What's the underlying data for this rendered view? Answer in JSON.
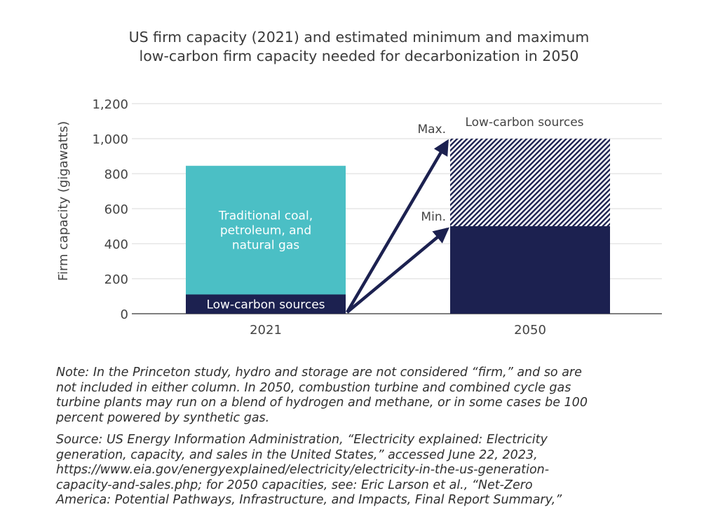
{
  "chart_data": {
    "type": "bar",
    "title_lines": [
      "US firm capacity (2021) and estimated minimum and maximum",
      "low-carbon firm capacity needed for decarbonization in 2050"
    ],
    "ylabel": "Firm capacity (gigawatts)",
    "ylim": [
      0,
      1200
    ],
    "yticks": [
      0,
      200,
      400,
      600,
      800,
      1000,
      1200
    ],
    "ytick_labels": [
      "0",
      "200",
      "400",
      "600",
      "800",
      "1,000",
      "1,200"
    ],
    "grid": true,
    "categories": [
      "2021",
      "2050"
    ],
    "bars": [
      {
        "category": "2021",
        "segments": [
          {
            "name": "Low-carbon sources",
            "value": 110,
            "color": "#1c2150"
          },
          {
            "name": "Traditional coal, petroleum, and natural gas",
            "value": 735,
            "color": "#4bbfc5",
            "label_lines": [
              "Traditional coal,",
              "petroleum, and",
              "natural gas"
            ]
          }
        ],
        "total": 845
      },
      {
        "category": "2050",
        "segments": [
          {
            "name": "Min.",
            "value": 500,
            "color": "#1c2150"
          },
          {
            "name": "Max.",
            "value": 500,
            "color": "#1c2150",
            "pattern": "hatched"
          }
        ],
        "total": 1000,
        "label": "Low-carbon sources"
      }
    ],
    "annotations": [
      {
        "text": "Max.",
        "value": 1000
      },
      {
        "text": "Min.",
        "value": 500
      }
    ],
    "colors": {
      "navy": "#1c2150",
      "teal": "#4bbfc5",
      "grid": "#d9d9d9",
      "axis": "#555555"
    }
  },
  "notes": {
    "note": "Note: In the Princeton study, hydro and storage are not considered “firm,” and so are\nnot included in either column. In 2050, combustion turbine and combined cycle gas\nturbine plants may run on a blend of hydrogen and methane, or in some cases be 100\npercent powered by synthetic gas.",
    "source": "Source: US Energy Information Administration, “Electricity explained: Electricity\ngeneration, capacity, and sales in the United States,” accessed June 22, 2023,\nhttps://www.eia.gov/energyexplained/electricity/electricity-in-the-us-generation-\ncapacity-and-sales.php; for 2050 capacities, see: Eric Larson et al., “Net-Zero\nAmerica: Potential Pathways, Infrastructure, and Impacts, Final Report Summary,”"
  }
}
